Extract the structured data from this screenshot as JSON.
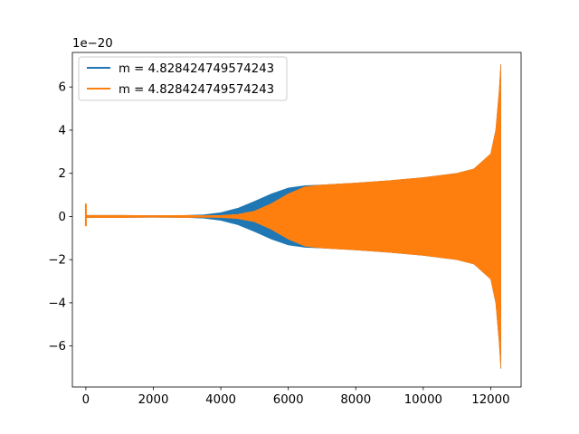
{
  "chart_data": {
    "type": "line",
    "title": "",
    "xlabel": "",
    "ylabel": "",
    "offset_text": "1e−20",
    "xlim": [
      -400,
      12900
    ],
    "ylim": [
      -7.9,
      7.6
    ],
    "x_ticks": [
      0,
      2000,
      4000,
      6000,
      8000,
      10000,
      12000
    ],
    "y_ticks": [
      -6,
      -4,
      -2,
      0,
      2,
      4,
      6
    ],
    "x_tick_labels": [
      "0",
      "2000",
      "4000",
      "6000",
      "8000",
      "10000",
      "12000"
    ],
    "y_tick_labels": [
      "−6",
      "−4",
      "−2",
      "0",
      "2",
      "4",
      "6"
    ],
    "grid": false,
    "legend": {
      "placement": "top-left"
    },
    "series": [
      {
        "name": "m = 4.828424749574243",
        "color": "#1f77b4",
        "envelope": [
          [
            0,
            0.05
          ],
          [
            1000,
            0.05
          ],
          [
            2000,
            0.04
          ],
          [
            3000,
            0.05
          ],
          [
            3500,
            0.08
          ],
          [
            4000,
            0.18
          ],
          [
            4500,
            0.38
          ],
          [
            5000,
            0.7
          ],
          [
            5500,
            1.05
          ],
          [
            6000,
            1.32
          ],
          [
            6500,
            1.43
          ],
          [
            7000,
            1.46
          ],
          [
            8000,
            1.55
          ],
          [
            9000,
            1.66
          ],
          [
            10000,
            1.8
          ],
          [
            11000,
            2.0
          ],
          [
            11500,
            2.2
          ],
          [
            12000,
            2.9
          ],
          [
            12150,
            4.0
          ],
          [
            12250,
            5.8
          ],
          [
            12300,
            7.05
          ]
        ]
      },
      {
        "name": "m = 4.828424749574243",
        "color": "#ff7f0e",
        "spike": {
          "x": 0,
          "ymax": 0.6,
          "ymin": -0.45
        },
        "envelope": [
          [
            0,
            0.05
          ],
          [
            1000,
            0.05
          ],
          [
            2000,
            0.04
          ],
          [
            3000,
            0.05
          ],
          [
            3500,
            0.04
          ],
          [
            4000,
            0.05
          ],
          [
            4500,
            0.1
          ],
          [
            5000,
            0.25
          ],
          [
            5500,
            0.6
          ],
          [
            6000,
            1.05
          ],
          [
            6500,
            1.38
          ],
          [
            7000,
            1.46
          ],
          [
            8000,
            1.55
          ],
          [
            9000,
            1.66
          ],
          [
            10000,
            1.8
          ],
          [
            11000,
            2.0
          ],
          [
            11500,
            2.2
          ],
          [
            12000,
            2.9
          ],
          [
            12150,
            4.0
          ],
          [
            12250,
            5.8
          ],
          [
            12300,
            7.05
          ]
        ]
      }
    ]
  }
}
